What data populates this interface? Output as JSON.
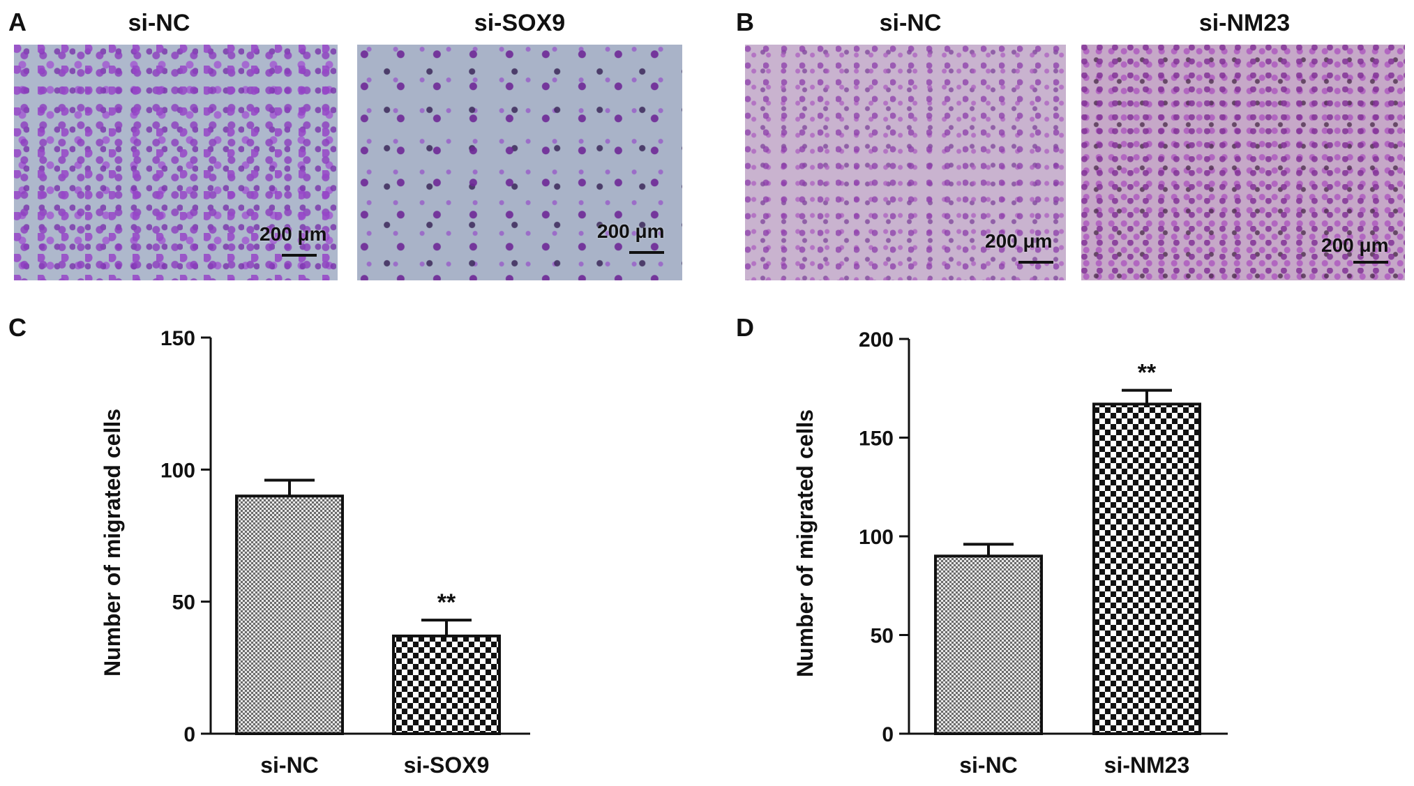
{
  "panels": {
    "A": {
      "letter": "A",
      "images": [
        {
          "title": "si-NC",
          "scale_bar": "200 μm"
        },
        {
          "title": "si-SOX9",
          "scale_bar": "200 μm"
        }
      ]
    },
    "B": {
      "letter": "B",
      "images": [
        {
          "title": "si-NC",
          "scale_bar": "200 μm"
        },
        {
          "title": "si-NM23",
          "scale_bar": "200 μm"
        }
      ]
    },
    "C": {
      "letter": "C"
    },
    "D": {
      "letter": "D"
    }
  },
  "chart_data": [
    {
      "type": "bar",
      "panel": "C",
      "ylabel": "Number of migrated cells",
      "categories": [
        "si-NC",
        "si-SOX9"
      ],
      "values": [
        90,
        37
      ],
      "error": [
        6,
        6
      ],
      "annotations": [
        "",
        "**"
      ],
      "ylim": [
        0,
        150
      ],
      "yticks": [
        0,
        50,
        100,
        150
      ],
      "patterns": [
        "fine-check",
        "coarse-check"
      ],
      "grid": false
    },
    {
      "type": "bar",
      "panel": "D",
      "ylabel": "Number of migrated cells",
      "categories": [
        "si-NC",
        "si-NM23"
      ],
      "values": [
        90,
        167
      ],
      "error": [
        6,
        7
      ],
      "annotations": [
        "",
        "**"
      ],
      "ylim": [
        0,
        200
      ],
      "yticks": [
        0,
        50,
        100,
        150,
        200
      ],
      "patterns": [
        "fine-check",
        "coarse-check"
      ],
      "grid": false
    }
  ]
}
